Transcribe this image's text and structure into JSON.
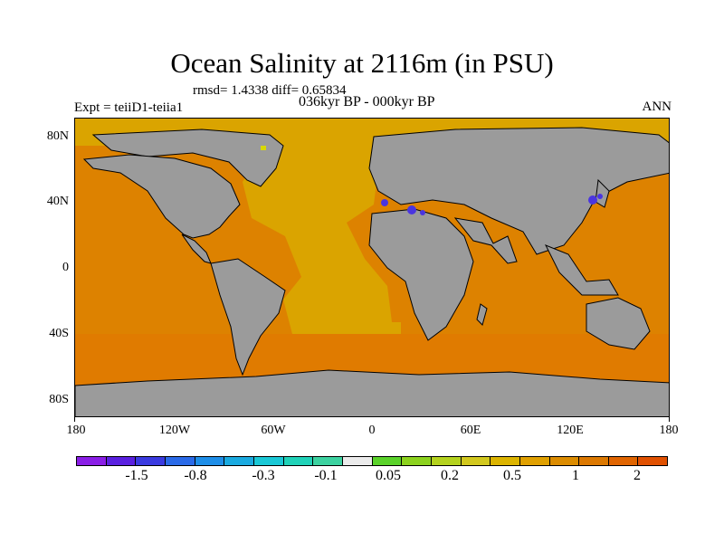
{
  "title": "Ocean Salinity at 2116m (in PSU)",
  "stats": "rmsd= 1.4338 diff= 0.65834",
  "expt": "Expt = teiiD1-teiia1",
  "period": "036kyr BP - 000kyr BP",
  "season": "ANN",
  "lat_labels": [
    "80N",
    "40N",
    "0",
    "40S",
    "80S"
  ],
  "lon_labels": [
    "180",
    "120W",
    "60W",
    "0",
    "60E",
    "120E",
    "180"
  ],
  "colors": {
    "land": "#9b9b9b",
    "ocean_main": "#dd8200",
    "atlantic": "#daa400",
    "arctic": "#daa400",
    "southern": "#e07b00",
    "negative_patch": "#4a35e0"
  },
  "colorbar": {
    "colors": [
      "#8a1ee6",
      "#5a20e0",
      "#3a3ae0",
      "#2a6ae8",
      "#1e8ee8",
      "#1aaae0",
      "#1ac8d6",
      "#20d2b8",
      "#3cd2a0",
      "#ebebeb",
      "#5ad22a",
      "#8cd21e",
      "#b4d21e",
      "#d2c81e",
      "#dcb400",
      "#e0a000",
      "#dc8c00",
      "#dc7800",
      "#e06400",
      "#e05000"
    ],
    "labels": [
      "-1.5",
      "-0.8",
      "-0.3",
      "-0.1",
      "0.05",
      "0.2",
      "0.5",
      "1",
      "2"
    ]
  }
}
